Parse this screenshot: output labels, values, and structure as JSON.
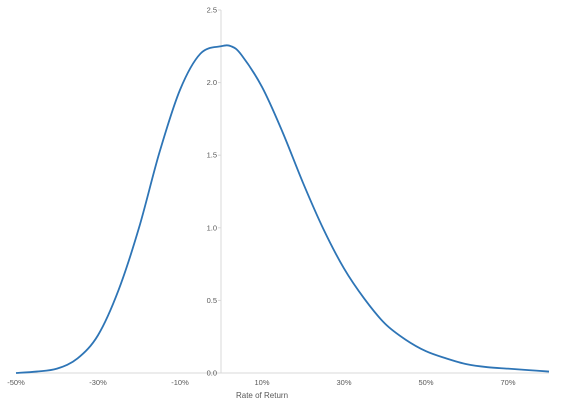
{
  "chart_data": {
    "type": "line",
    "title": "",
    "xlabel": "Rate of Return",
    "ylabel": "",
    "xlim": [
      -0.5,
      0.8
    ],
    "ylim": [
      0,
      2.5
    ],
    "x_ticks": [
      {
        "value": -0.5,
        "label": "-50%"
      },
      {
        "value": -0.3,
        "label": "-30%"
      },
      {
        "value": -0.1,
        "label": "-10%"
      },
      {
        "value": 0.1,
        "label": "10%"
      },
      {
        "value": 0.3,
        "label": "30%"
      },
      {
        "value": 0.5,
        "label": "50%"
      },
      {
        "value": 0.7,
        "label": "70%"
      }
    ],
    "y_ticks": [
      {
        "value": 0.0,
        "label": "0.0"
      },
      {
        "value": 0.5,
        "label": "0.5"
      },
      {
        "value": 1.0,
        "label": "1.0"
      },
      {
        "value": 1.5,
        "label": "1.5"
      },
      {
        "value": 2.0,
        "label": "2.0"
      },
      {
        "value": 2.5,
        "label": "2.5"
      }
    ],
    "grid": false,
    "series": [
      {
        "color": "#2E75B6",
        "x": [
          -0.5,
          -0.45,
          -0.4,
          -0.35,
          -0.3,
          -0.25,
          -0.2,
          -0.15,
          -0.1,
          -0.05,
          0.0,
          0.025,
          0.05,
          0.1,
          0.15,
          0.2,
          0.25,
          0.3,
          0.35,
          0.4,
          0.45,
          0.5,
          0.55,
          0.6,
          0.65,
          0.7,
          0.75,
          0.8
        ],
        "y": [
          0.0,
          0.01,
          0.03,
          0.1,
          0.26,
          0.57,
          1.0,
          1.52,
          1.95,
          2.2,
          2.25,
          2.25,
          2.19,
          1.97,
          1.66,
          1.31,
          0.99,
          0.72,
          0.51,
          0.34,
          0.23,
          0.15,
          0.1,
          0.06,
          0.04,
          0.03,
          0.02,
          0.01
        ]
      }
    ]
  }
}
